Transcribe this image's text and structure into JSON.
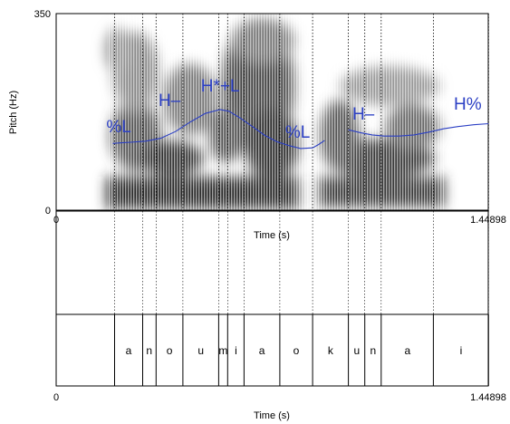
{
  "spectrogram": {
    "y_axis_label": "Pitch (Hz)",
    "y_max_label": "350",
    "y_min_label": "0",
    "x_start_label": "0",
    "x_end_label": "1.44898",
    "x_axis_label": "Time (s)",
    "y_range_hz": [
      0,
      350
    ],
    "x_range_s": [
      0,
      1.44898
    ]
  },
  "tones": [
    {
      "label": "%L",
      "t": 0.21,
      "hz": 140
    },
    {
      "label": "H–",
      "t": 0.38,
      "hz": 186
    },
    {
      "label": "H*+L",
      "t": 0.55,
      "hz": 212
    },
    {
      "label": "%L",
      "t": 0.81,
      "hz": 130
    },
    {
      "label": "H–",
      "t": 1.03,
      "hz": 162
    },
    {
      "label": "H%",
      "t": 1.38,
      "hz": 180
    }
  ],
  "pitch_track": [
    [
      [
        0.19,
        120
      ],
      [
        0.22,
        121
      ],
      [
        0.25,
        122
      ],
      [
        0.3,
        124
      ],
      [
        0.35,
        129
      ],
      [
        0.4,
        141
      ],
      [
        0.45,
        158
      ],
      [
        0.5,
        173
      ],
      [
        0.55,
        180
      ],
      [
        0.58,
        177
      ],
      [
        0.62,
        164
      ],
      [
        0.66,
        149
      ],
      [
        0.7,
        134
      ],
      [
        0.74,
        123
      ],
      [
        0.78,
        116
      ],
      [
        0.82,
        111
      ],
      [
        0.86,
        112
      ],
      [
        0.88,
        118
      ],
      [
        0.9,
        125
      ]
    ],
    [
      [
        0.98,
        144
      ],
      [
        1.02,
        139
      ],
      [
        1.06,
        135
      ],
      [
        1.1,
        133
      ],
      [
        1.15,
        133
      ],
      [
        1.2,
        135
      ],
      [
        1.25,
        140
      ],
      [
        1.3,
        146
      ],
      [
        1.35,
        150
      ],
      [
        1.4,
        153
      ],
      [
        1.45,
        155
      ]
    ]
  ],
  "boundaries": [
    0.196,
    0.29,
    0.335,
    0.425,
    0.545,
    0.575,
    0.63,
    0.75,
    0.86,
    0.98,
    1.035,
    1.09,
    1.265,
    1.45
  ],
  "tier": {
    "x_start_label": "0",
    "x_end_label": "1.44898",
    "x_axis_label": "Time (s)",
    "segments": [
      {
        "label": "a",
        "t": 0.243
      },
      {
        "label": "n",
        "t": 0.312
      },
      {
        "label": "o",
        "t": 0.38
      },
      {
        "label": "u",
        "t": 0.485
      },
      {
        "label": "m",
        "t": 0.56
      },
      {
        "label": "i",
        "t": 0.603
      },
      {
        "label": "a",
        "t": 0.69
      },
      {
        "label": "o",
        "t": 0.805
      },
      {
        "label": "k",
        "t": 0.92
      },
      {
        "label": "u",
        "t": 1.008
      },
      {
        "label": "n",
        "t": 1.063
      },
      {
        "label": "a",
        "t": 1.178
      },
      {
        "label": "i",
        "t": 1.358
      }
    ]
  }
}
